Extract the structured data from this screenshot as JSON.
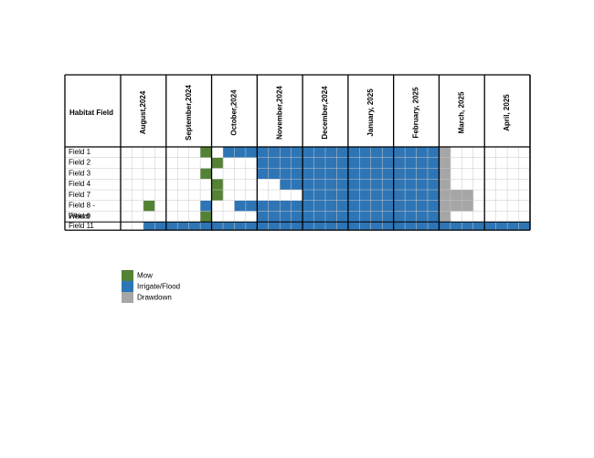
{
  "chart_data": {
    "type": "table",
    "row_header": "Habitat Field",
    "months": [
      "August,2024",
      "September,2024",
      "October,2024",
      "November,2024",
      "December,2024",
      "January, 2025",
      "February, 2025",
      "March, 2025",
      "April, 2025"
    ],
    "weeks_per_month": 4,
    "rows": [
      {
        "name": "Field 1",
        "name_lines": [
          "Field 1"
        ],
        "mow": [
          7
        ],
        "flood": [
          9,
          10,
          11,
          12,
          13,
          14,
          15,
          16,
          17,
          18,
          19,
          20,
          21,
          22,
          23,
          24,
          25,
          26,
          27
        ],
        "drawdown": [
          28
        ]
      },
      {
        "name": "Field 2",
        "name_lines": [
          "Field 2"
        ],
        "mow": [
          8
        ],
        "flood": [
          12,
          13,
          14,
          15,
          16,
          17,
          18,
          19,
          20,
          21,
          22,
          23,
          24,
          25,
          26,
          27
        ],
        "drawdown": [
          28
        ]
      },
      {
        "name": "Field 3",
        "name_lines": [
          "Field 3"
        ],
        "mow": [
          7
        ],
        "flood": [
          12,
          13,
          14,
          15,
          16,
          17,
          18,
          19,
          20,
          21,
          22,
          23,
          24,
          25,
          26,
          27
        ],
        "drawdown": [
          28
        ]
      },
      {
        "name": "Field 4",
        "name_lines": [
          "Field 4"
        ],
        "mow": [
          8
        ],
        "flood": [
          14,
          15,
          16,
          17,
          18,
          19,
          20,
          21,
          22,
          23,
          24,
          25,
          26,
          27
        ],
        "drawdown": [
          28
        ]
      },
      {
        "name": "Field 7",
        "name_lines": [
          "Field 7"
        ],
        "mow": [
          8
        ],
        "flood": [
          16,
          17,
          18,
          19,
          20,
          21,
          22,
          23,
          24,
          25,
          26,
          27
        ],
        "drawdown": [
          28,
          29,
          30
        ]
      },
      {
        "name": "Field 8 - Wheat",
        "name_lines": [
          "Field 8 -",
          "Wheat"
        ],
        "mow": [
          2
        ],
        "flood": [
          7,
          10,
          11,
          12,
          13,
          14,
          15,
          16,
          17,
          18,
          19,
          20,
          21,
          22,
          23,
          24,
          25,
          26,
          27
        ],
        "drawdown": [
          28,
          29,
          30
        ]
      },
      {
        "name": "Field 9",
        "name_lines": [
          "Field 9"
        ],
        "mow": [
          7
        ],
        "flood": [
          12,
          13,
          14,
          15,
          16,
          17,
          18,
          19,
          20,
          21,
          22,
          23,
          24,
          25,
          26,
          27
        ],
        "drawdown": [
          28
        ]
      },
      {
        "name": "Field 11",
        "name_lines": [
          "Field 11"
        ],
        "mow": [],
        "flood": [
          2,
          3,
          4,
          5,
          6,
          7,
          8,
          9,
          10,
          11,
          12,
          13,
          14,
          15,
          16,
          17,
          18,
          19,
          20,
          21,
          22,
          23,
          24,
          25,
          26,
          27,
          28,
          29,
          30,
          31,
          32,
          33,
          34,
          35
        ],
        "drawdown": []
      }
    ],
    "legend": [
      {
        "key": "mow",
        "label": "Mow",
        "color": "#548235"
      },
      {
        "key": "flood",
        "label": "Irrigate/Flood",
        "color": "#2e75b6"
      },
      {
        "key": "drawdown",
        "label": "Drawdown",
        "color": "#a6a6a6"
      }
    ]
  }
}
